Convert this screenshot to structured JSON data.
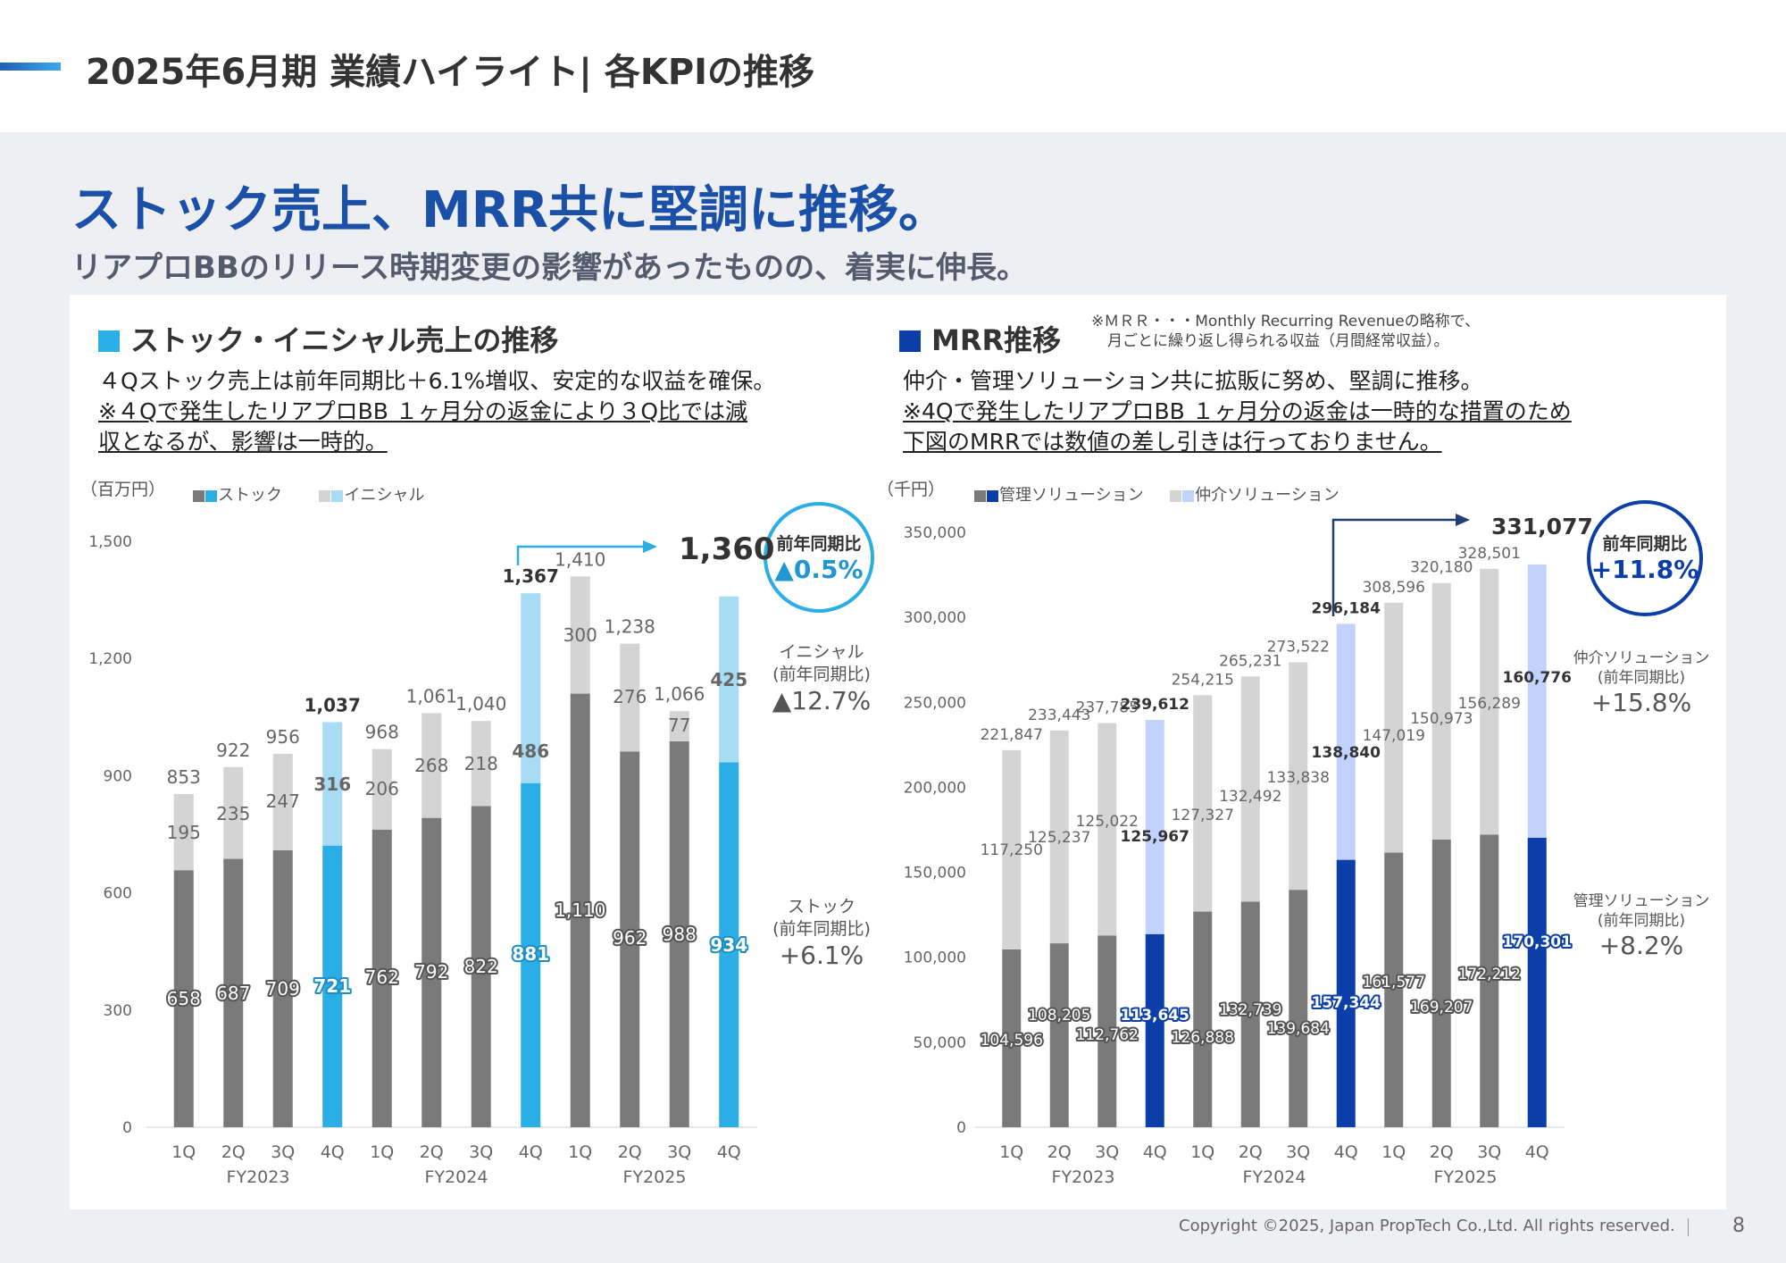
{
  "header": {
    "title": "2025年6月期 業績ハイライト| 各KPIの推移"
  },
  "headline": "ストック売上、MRR共に堅調に推移。",
  "subheadline": "リアプロBBのリリース時期変更の影響があったものの、着実に伸長。",
  "left_section": {
    "title": "ストック・イニシャル売上の推移",
    "desc_line1": "４Qストック売上は前年同期比＋6.1%増収、安定的な収益を確保。",
    "desc_line2": "※４Qで発生したリアプロBB １ヶ月分の返金により３Q比では減",
    "desc_line3": "収となるが、影響は一時的。",
    "unit": "（百万円）",
    "legend_stock": "ストック",
    "legend_initial": "イニシャル",
    "circle_label": "前年同期比",
    "circle_value": "▲0.5%",
    "total_label": "1,360",
    "yoy_initial_label": "イニシャル",
    "yoy_initial_sub": "(前年同期比)",
    "yoy_initial_value": "▲12.7%",
    "yoy_stock_label": "ストック",
    "yoy_stock_sub": "(前年同期比)",
    "yoy_stock_value": "+6.1%"
  },
  "right_section": {
    "title": "MRR推移",
    "note_line1": "※ＭＲＲ・・・Monthly Recurring Revenueの略称で、",
    "note_line2": "月ごとに繰り返し得られる収益（月間経常収益）。",
    "desc_line1": "仲介・管理ソリューション共に拡販に努め、堅調に推移。",
    "desc_line2": "※4Qで発生したリアプロBB １ヶ月分の返金は一時的な措置のため",
    "desc_line3": "下図のMRRでは数値の差し引きは行っておりません。",
    "unit": "（千円）",
    "legend_mgmt": "管理ソリューション",
    "legend_broker": "仲介ソリューション",
    "circle_label": "前年同期比",
    "circle_value": "+11.8%",
    "total_label": "331,077",
    "yoy_broker_label": "仲介ソリューション",
    "yoy_broker_sub": "(前年同期比)",
    "yoy_broker_value": "+15.8%",
    "yoy_mgmt_label": "管理ソリューション",
    "yoy_mgmt_sub": "(前年同期比)",
    "yoy_mgmt_value": "+8.2%"
  },
  "colors": {
    "grey_dark": "#7a7a7a",
    "grey_light": "#d4d4d4",
    "blue_cyan": "#2baee6",
    "blue_cyan_light": "#a8dcf3",
    "navy": "#0b3ea8",
    "navy_light": "#c1d3fb"
  },
  "footer": {
    "copyright": "Copyright ©2025, Japan PropTech Co.,Ltd. All rights reserved.",
    "page": "8"
  },
  "chart_data": [
    {
      "type": "bar",
      "stacked": true,
      "categories": [
        "1Q",
        "2Q",
        "3Q",
        "4Q",
        "1Q",
        "2Q",
        "3Q",
        "4Q",
        "1Q",
        "2Q",
        "3Q",
        "4Q"
      ],
      "groups": [
        "FY2023",
        "FY2024",
        "FY2025"
      ],
      "series": [
        {
          "name": "ストック",
          "values": [
            658,
            687,
            709,
            721,
            762,
            792,
            822,
            881,
            1110,
            962,
            988,
            934
          ]
        },
        {
          "name": "イニシャル",
          "values": [
            195,
            235,
            247,
            316,
            206,
            268,
            218,
            486,
            300,
            276,
            77,
            425
          ]
        }
      ],
      "totals": [
        853,
        922,
        956,
        1037,
        968,
        1061,
        1040,
        1367,
        1410,
        1238,
        1066,
        1360
      ],
      "total_labels": [
        "853",
        "922",
        "956",
        "1,037",
        "968",
        "1,061",
        "1,040",
        "1,367",
        "1,410",
        "1,238",
        "1,066",
        ""
      ],
      "stock_labels": [
        "658",
        "687",
        "709",
        "721",
        "762",
        "792",
        "822",
        "881",
        "1,110",
        "962",
        "988",
        "934"
      ],
      "initial_labels": [
        "195",
        "235",
        "247",
        "316",
        "206",
        "268",
        "218",
        "486",
        "300",
        "276",
        "77",
        "425"
      ],
      "yticks": [
        0,
        300,
        600,
        900,
        1200,
        1500
      ],
      "ytick_labels": [
        "0",
        "300",
        "600",
        "900",
        "1,200",
        "1,500"
      ],
      "ylim": [
        0,
        1500
      ]
    },
    {
      "type": "bar",
      "stacked": true,
      "categories": [
        "1Q",
        "2Q",
        "3Q",
        "4Q",
        "1Q",
        "2Q",
        "3Q",
        "4Q",
        "1Q",
        "2Q",
        "3Q",
        "4Q"
      ],
      "groups": [
        "FY2023",
        "FY2024",
        "FY2025"
      ],
      "series": [
        {
          "name": "管理ソリューション",
          "values": [
            104596,
            108205,
            112762,
            113645,
            126888,
            132739,
            139684,
            157344,
            161577,
            169207,
            172212,
            170301
          ]
        },
        {
          "name": "仲介ソリューション",
          "values": [
            117250,
            125237,
            125022,
            125967,
            127327,
            132492,
            133838,
            138840,
            147019,
            150973,
            156289,
            160776
          ]
        }
      ],
      "totals": [
        221847,
        233443,
        237785,
        239612,
        254215,
        265231,
        273522,
        296184,
        308596,
        320180,
        328501,
        331077
      ],
      "total_labels": [
        "221,847",
        "233,443",
        "237,785",
        "239,612",
        "254,215",
        "265,231",
        "273,522",
        "296,184",
        "308,596",
        "320,180",
        "328,501",
        ""
      ],
      "mgmt_labels": [
        "104,596",
        "108,205",
        "112,762",
        "113,645",
        "126,888",
        "132,739",
        "139,684",
        "157,344",
        "161,577",
        "169,207",
        "172,212",
        "170,301"
      ],
      "broker_labels": [
        "117,250",
        "125,237",
        "125,022",
        "125,967",
        "127,327",
        "132,492",
        "133,838",
        "138,840",
        "147,019",
        "150,973",
        "156,289",
        "160,776"
      ],
      "yticks": [
        0,
        50000,
        100000,
        150000,
        200000,
        250000,
        300000,
        350000
      ],
      "ytick_labels": [
        "0",
        "50,000",
        "100,000",
        "150,000",
        "200,000",
        "250,000",
        "300,000",
        "350,000"
      ],
      "ylim": [
        0,
        350000
      ]
    }
  ]
}
